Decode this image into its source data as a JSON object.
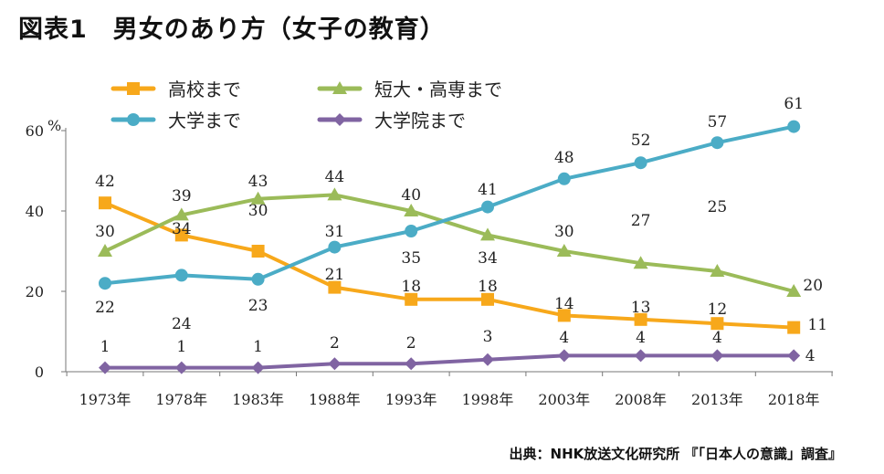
{
  "title": "図表1　男女のあり方（女子の教育）",
  "source": "出典：NHK放送文化研究所 『「日本人の意識」調査』",
  "chart_data": {
    "type": "line",
    "title": "図表1　男女のあり方（女子の教育）",
    "ylabel": "%",
    "ylim": [
      0,
      60
    ],
    "yticks": [
      0,
      20,
      40,
      60
    ],
    "grid": false,
    "legend_position": "top",
    "categories": [
      "1973年",
      "1978年",
      "1983年",
      "1988年",
      "1993年",
      "1998年",
      "2003年",
      "2008年",
      "2013年",
      "2018年"
    ],
    "series": [
      {
        "name": "高校まで",
        "color": "#F7A81B",
        "marker": "square",
        "values": [
          42,
          34,
          30,
          21,
          18,
          18,
          14,
          13,
          12,
          11
        ]
      },
      {
        "name": "短大・高専まで",
        "color": "#9BBB59",
        "marker": "triangle",
        "values": [
          30,
          39,
          43,
          44,
          40,
          34,
          30,
          27,
          25,
          20
        ]
      },
      {
        "name": "大学まで",
        "color": "#4BACC6",
        "marker": "circle",
        "values": [
          22,
          24,
          23,
          31,
          35,
          41,
          48,
          52,
          57,
          61
        ]
      },
      {
        "name": "大学院まで",
        "color": "#8064A2",
        "marker": "diamond",
        "values": [
          1,
          1,
          1,
          2,
          2,
          3,
          4,
          4,
          4,
          4
        ]
      }
    ]
  }
}
